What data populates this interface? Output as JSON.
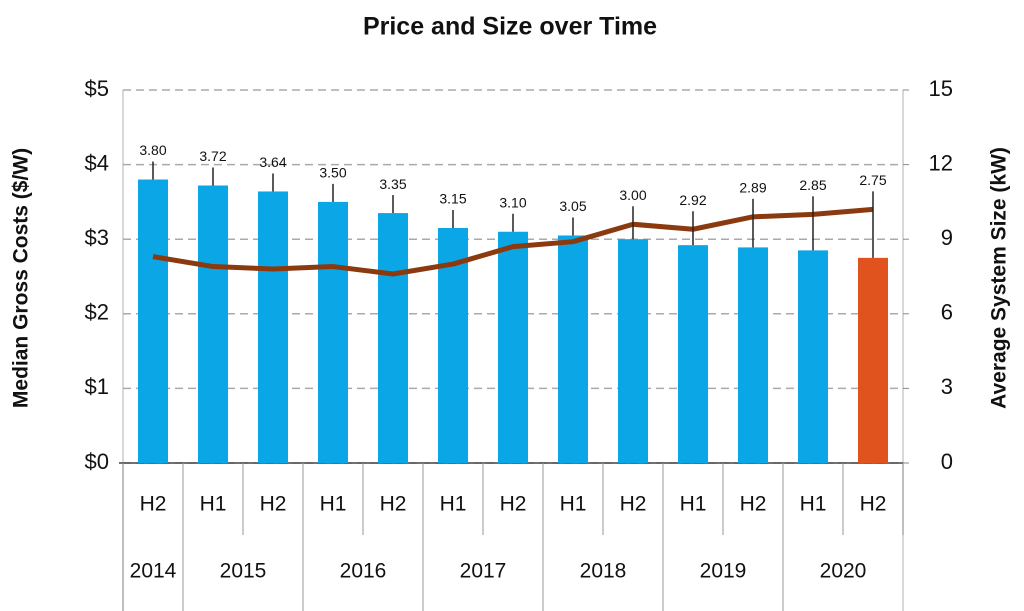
{
  "chart_data": {
    "type": "bar",
    "title": "Price and Size over Time",
    "y_label": "Median Gross Costs ($/W)",
    "y2_label": "Average System Size (kW)",
    "categories": [
      "H2",
      "H1",
      "H2",
      "H1",
      "H2",
      "H1",
      "H2",
      "H1",
      "H2",
      "H1",
      "H2",
      "H1",
      "H2"
    ],
    "groups": [
      {
        "label": "2014",
        "span": 1
      },
      {
        "label": "2015",
        "span": 2
      },
      {
        "label": "2016",
        "span": 2
      },
      {
        "label": "2017",
        "span": 2
      },
      {
        "label": "2018",
        "span": 2
      },
      {
        "label": "2019",
        "span": 2
      },
      {
        "label": "2020",
        "span": 2
      }
    ],
    "series": [
      {
        "name": "Median Gross Costs",
        "type": "bar",
        "colors": [
          "#0aa6e6",
          "#0aa6e6",
          "#0aa6e6",
          "#0aa6e6",
          "#0aa6e6",
          "#0aa6e6",
          "#0aa6e6",
          "#0aa6e6",
          "#0aa6e6",
          "#0aa6e6",
          "#0aa6e6",
          "#0aa6e6",
          "#e0521e"
        ],
        "values": [
          3.8,
          3.72,
          3.64,
          3.5,
          3.35,
          3.15,
          3.1,
          3.05,
          3.0,
          2.92,
          2.89,
          2.85,
          2.75
        ],
        "value_labels": [
          "3.80",
          "3.72",
          "3.64",
          "3.50",
          "3.35",
          "3.15",
          "3.10",
          "3.05",
          "3.00",
          "2.92",
          "2.89",
          "2.85",
          "2.75"
        ]
      },
      {
        "name": "Average System Size",
        "type": "line",
        "axis": "y2",
        "color": "#8b3a10",
        "values": [
          8.3,
          7.9,
          7.8,
          7.9,
          7.6,
          8.0,
          8.7,
          8.9,
          9.6,
          9.4,
          9.9,
          10.0,
          10.2
        ]
      }
    ],
    "ylim": [
      0,
      5
    ],
    "yticks": [
      {
        "value": 0,
        "label": "$0"
      },
      {
        "value": 1,
        "label": "$1"
      },
      {
        "value": 2,
        "label": "$2"
      },
      {
        "value": 3,
        "label": "$3"
      },
      {
        "value": 4,
        "label": "$4"
      },
      {
        "value": 5,
        "label": "$5"
      }
    ],
    "y2lim": [
      0,
      15
    ],
    "y2ticks": [
      0,
      3,
      6,
      9,
      12,
      15
    ],
    "grid": true
  }
}
